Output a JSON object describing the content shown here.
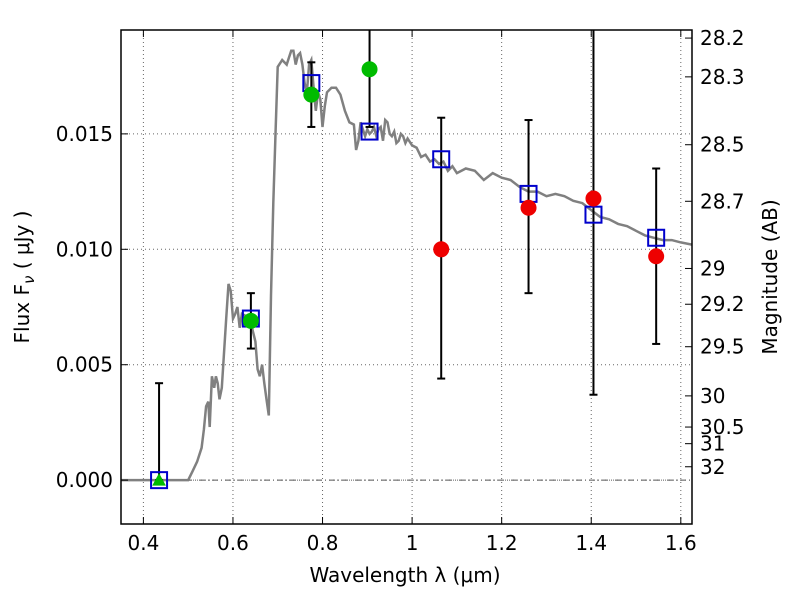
{
  "chart_data": {
    "type": "scatter",
    "xlabel": "Wavelength  λ (μm)",
    "ylabel": "Flux  F",
    "ylabel_sub": "ν",
    "ylabel_unit": "  ( μJy )",
    "y2label": "Magnitude (AB)",
    "xlim": [
      0.35,
      1.625
    ],
    "ylim": [
      -0.0019,
      0.0195
    ],
    "grid": true,
    "x_ticks": [
      {
        "value": 0.4,
        "label": "0.4"
      },
      {
        "value": 0.6,
        "label": "0.6"
      },
      {
        "value": 0.8,
        "label": "0.8"
      },
      {
        "value": 1.0,
        "label": "1"
      },
      {
        "value": 1.2,
        "label": "1.2"
      },
      {
        "value": 1.4,
        "label": "1.4"
      },
      {
        "value": 1.6,
        "label": "1.6"
      }
    ],
    "y_ticks": [
      {
        "value": 0.0,
        "label": "0.000"
      },
      {
        "value": 0.005,
        "label": "0.005"
      },
      {
        "value": 0.01,
        "label": "0.010"
      },
      {
        "value": 0.015,
        "label": "0.015"
      }
    ],
    "y2_ticks": [
      {
        "label": "28.2",
        "flux": 0.01915
      },
      {
        "label": "28.3",
        "flux": 0.01747
      },
      {
        "label": "28.5",
        "flux": 0.01453
      },
      {
        "label": "28.7",
        "flux": 0.01208
      },
      {
        "label": "29",
        "flux": 0.00917
      },
      {
        "label": "29.2",
        "flux": 0.00762
      },
      {
        "label": "29.5",
        "flux": 0.00578
      },
      {
        "label": "30",
        "flux": 0.00365
      },
      {
        "label": "30.5",
        "flux": 0.0023
      },
      {
        "label": "31",
        "flux": 0.00158
      },
      {
        "label": "32",
        "flux": 0.00058
      }
    ],
    "model_sed": {
      "color": "#808080",
      "points": [
        [
          0.35,
          0.0
        ],
        [
          0.5,
          0.0
        ],
        [
          0.51,
          0.0004
        ],
        [
          0.52,
          0.0008
        ],
        [
          0.53,
          0.0014
        ],
        [
          0.535,
          0.0022
        ],
        [
          0.54,
          0.0032
        ],
        [
          0.545,
          0.0034
        ],
        [
          0.548,
          0.0023
        ],
        [
          0.553,
          0.0045
        ],
        [
          0.558,
          0.004
        ],
        [
          0.562,
          0.0045
        ],
        [
          0.566,
          0.0042
        ],
        [
          0.57,
          0.0035
        ],
        [
          0.575,
          0.004
        ],
        [
          0.58,
          0.0055
        ],
        [
          0.585,
          0.007
        ],
        [
          0.59,
          0.0085
        ],
        [
          0.595,
          0.0082
        ],
        [
          0.6,
          0.007
        ],
        [
          0.605,
          0.0072
        ],
        [
          0.61,
          0.0075
        ],
        [
          0.615,
          0.0066
        ],
        [
          0.62,
          0.0072
        ],
        [
          0.63,
          0.0071
        ],
        [
          0.64,
          0.0068
        ],
        [
          0.65,
          0.006
        ],
        [
          0.655,
          0.0048
        ],
        [
          0.66,
          0.0045
        ],
        [
          0.665,
          0.005
        ],
        [
          0.67,
          0.0042
        ],
        [
          0.675,
          0.0035
        ],
        [
          0.68,
          0.0028
        ],
        [
          0.685,
          0.008
        ],
        [
          0.69,
          0.012
        ],
        [
          0.695,
          0.015
        ],
        [
          0.7,
          0.0179
        ],
        [
          0.71,
          0.0182
        ],
        [
          0.72,
          0.018
        ],
        [
          0.725,
          0.0183
        ],
        [
          0.73,
          0.0186
        ],
        [
          0.735,
          0.0186
        ],
        [
          0.74,
          0.018
        ],
        [
          0.745,
          0.0184
        ],
        [
          0.75,
          0.0185
        ],
        [
          0.755,
          0.018
        ],
        [
          0.76,
          0.0172
        ],
        [
          0.765,
          0.0168
        ],
        [
          0.77,
          0.018
        ],
        [
          0.775,
          0.0182
        ],
        [
          0.78,
          0.017
        ],
        [
          0.785,
          0.016
        ],
        [
          0.79,
          0.0168
        ],
        [
          0.795,
          0.0165
        ],
        [
          0.8,
          0.0153
        ],
        [
          0.805,
          0.0162
        ],
        [
          0.81,
          0.0168
        ],
        [
          0.82,
          0.017
        ],
        [
          0.83,
          0.017
        ],
        [
          0.84,
          0.0167
        ],
        [
          0.85,
          0.016
        ],
        [
          0.86,
          0.0155
        ],
        [
          0.87,
          0.0154
        ],
        [
          0.875,
          0.0143
        ],
        [
          0.88,
          0.0147
        ],
        [
          0.885,
          0.0155
        ],
        [
          0.89,
          0.0152
        ],
        [
          0.895,
          0.0149
        ],
        [
          0.9,
          0.0152
        ],
        [
          0.905,
          0.015
        ],
        [
          0.91,
          0.0151
        ],
        [
          0.915,
          0.0153
        ],
        [
          0.92,
          0.0149
        ],
        [
          0.925,
          0.0152
        ],
        [
          0.93,
          0.0153
        ],
        [
          0.935,
          0.0147
        ],
        [
          0.94,
          0.0156
        ],
        [
          0.945,
          0.0155
        ],
        [
          0.95,
          0.015
        ],
        [
          0.955,
          0.0149
        ],
        [
          0.96,
          0.0151
        ],
        [
          0.965,
          0.0146
        ],
        [
          0.97,
          0.0147
        ],
        [
          0.975,
          0.015
        ],
        [
          0.98,
          0.0149
        ],
        [
          0.985,
          0.0146
        ],
        [
          0.99,
          0.0148
        ],
        [
          1.0,
          0.0145
        ],
        [
          1.01,
          0.0144
        ],
        [
          1.02,
          0.014
        ],
        [
          1.03,
          0.0141
        ],
        [
          1.04,
          0.0138
        ],
        [
          1.05,
          0.0139
        ],
        [
          1.06,
          0.0137
        ],
        [
          1.07,
          0.0138
        ],
        [
          1.08,
          0.0134
        ],
        [
          1.09,
          0.0136
        ],
        [
          1.1,
          0.0133
        ],
        [
          1.12,
          0.0135
        ],
        [
          1.14,
          0.0134
        ],
        [
          1.16,
          0.013
        ],
        [
          1.18,
          0.0133
        ],
        [
          1.2,
          0.0131
        ],
        [
          1.22,
          0.013
        ],
        [
          1.24,
          0.0127
        ],
        [
          1.26,
          0.0125
        ],
        [
          1.28,
          0.0125
        ],
        [
          1.3,
          0.0123
        ],
        [
          1.32,
          0.0124
        ],
        [
          1.34,
          0.0123
        ],
        [
          1.36,
          0.0121
        ],
        [
          1.38,
          0.012
        ],
        [
          1.4,
          0.0117
        ],
        [
          1.42,
          0.0114
        ],
        [
          1.44,
          0.0113
        ],
        [
          1.46,
          0.0111
        ],
        [
          1.48,
          0.011
        ],
        [
          1.5,
          0.0108
        ],
        [
          1.52,
          0.0106
        ],
        [
          1.54,
          0.0105
        ],
        [
          1.56,
          0.0104
        ],
        [
          1.58,
          0.0104
        ],
        [
          1.6,
          0.0103
        ],
        [
          1.625,
          0.0102
        ]
      ]
    },
    "model_bands": {
      "color": "#0000cc",
      "points": [
        [
          0.435,
          0.0
        ],
        [
          0.64,
          0.007
        ],
        [
          0.775,
          0.0172
        ],
        [
          0.905,
          0.0151
        ],
        [
          1.065,
          0.0139
        ],
        [
          1.26,
          0.0124
        ],
        [
          1.405,
          0.0115
        ],
        [
          1.545,
          0.0105
        ]
      ]
    },
    "detections": {
      "color": "#00bb00",
      "points": [
        {
          "x": 0.64,
          "y": 0.0069,
          "lo": 0.0057,
          "hi": 0.0081
        },
        {
          "x": 0.775,
          "y": 0.0167,
          "lo": 0.0153,
          "hi": 0.0181
        },
        {
          "x": 0.905,
          "y": 0.0178,
          "lo": 0.0153,
          "hi": 0.0205
        }
      ]
    },
    "upper_limit": {
      "color": "#00bb00",
      "points": [
        {
          "x": 0.435,
          "y": 0.0,
          "lo": 0.0,
          "hi": 0.0042
        }
      ]
    },
    "ir_points": {
      "color": "#ee0000",
      "points": [
        {
          "x": 1.065,
          "y": 0.01,
          "lo": 0.0044,
          "hi": 0.0157
        },
        {
          "x": 1.26,
          "y": 0.0118,
          "lo": 0.0081,
          "hi": 0.0156
        },
        {
          "x": 1.405,
          "y": 0.0122,
          "lo": 0.0037,
          "hi": 0.0205
        },
        {
          "x": 1.545,
          "y": 0.0097,
          "lo": 0.0059,
          "hi": 0.0135
        }
      ]
    }
  }
}
